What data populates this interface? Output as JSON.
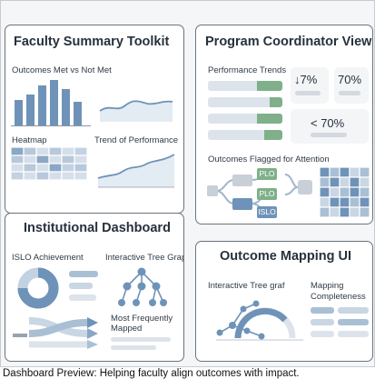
{
  "caption": "Dashboard Preview: Helping faculty align outcomes with impact.",
  "panels": {
    "faculty": {
      "title": "Faculty Summary Toolkit",
      "outcomes_label": "Outcomes Met vs Not Met",
      "heatmap_label": "Heatmap",
      "trend_label": "Trend of Performance"
    },
    "coordinator": {
      "title": "Program Coordinator View",
      "performance_label": "Performance Trends",
      "stat_down": "↓7%",
      "stat_70": "70%",
      "stat_lt70": "< 70%",
      "flagged_label": "Outcomes Flagged for Attention",
      "node_plo_1": "PLO",
      "node_plo_2": "PLO",
      "node_islo": "ISLO"
    },
    "institutional": {
      "title": "Institutional Dashboard",
      "islo_label": "ISLO Achievement",
      "tree_label": "Interactive Tree Grap",
      "frequent_label": "Most Frequently Mapped"
    },
    "mapping": {
      "title": "Outcome Mapping UI",
      "tree_label": "Interactive Tree graf",
      "completeness_label": "Mapping Completeness"
    }
  },
  "colors": {
    "blue": "#6f93b8",
    "green": "#7fb08a",
    "light": "#dde3ea",
    "heat_dark": "#8aa7c5"
  }
}
